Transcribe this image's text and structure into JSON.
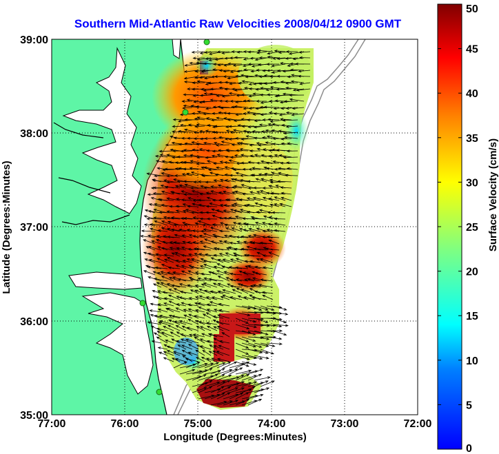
{
  "chart_data": {
    "type": "heatmap",
    "title": "Southern Mid-Atlantic Raw Velocities 2008/04/12 0900 GMT",
    "xlabel": "Longitude (Degrees:Minutes)",
    "ylabel": "Latitude (Degrees:Minutes)",
    "x_ticks": [
      "77:00",
      "76:00",
      "75:00",
      "74:00",
      "73:00",
      "72:00"
    ],
    "y_ticks": [
      "39:00",
      "38:00",
      "37:00",
      "36:00",
      "35:00"
    ],
    "xlim": [
      -77,
      -72
    ],
    "ylim": [
      35,
      39
    ],
    "grid": true,
    "colorbar": {
      "label": "Surface Velocity (cm/s)",
      "ticks": [
        "50",
        "45",
        "40",
        "35",
        "30",
        "25",
        "20",
        "15",
        "10",
        "5",
        "0"
      ],
      "range": [
        0,
        50
      ],
      "colormap": "jet"
    },
    "colors": {
      "land": "#5ef5a6",
      "coast": "#000000",
      "bathymetry": "#8c8c8c",
      "station": "#33dd33",
      "arrows": "#000000"
    }
  }
}
